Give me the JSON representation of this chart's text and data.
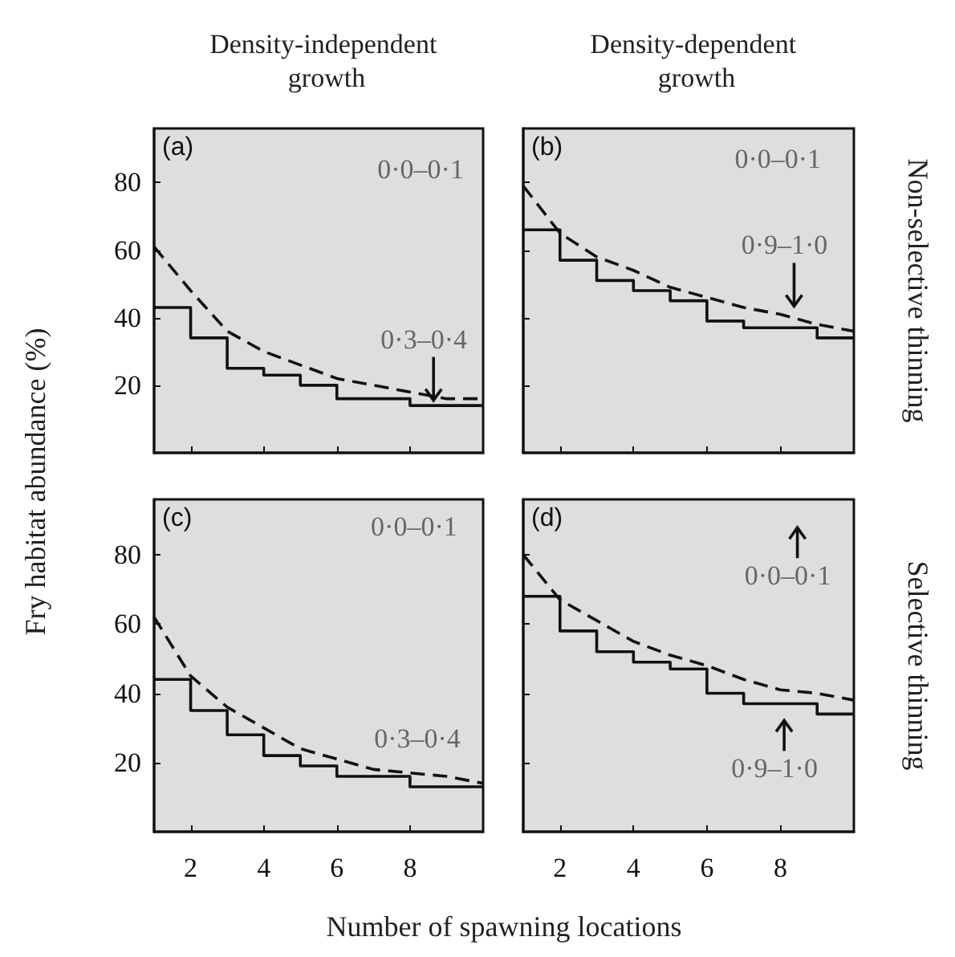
{
  "chart_data": [
    {
      "type": "step",
      "title": "Density-independent growth",
      "ylabel": "Fry habitat abundance (%)",
      "x": [
        1,
        2,
        3,
        4,
        5,
        6,
        7,
        8,
        9,
        10
      ],
      "xlim": [
        1,
        10
      ],
      "ylim": [
        0,
        96
      ],
      "xticks": [
        2,
        4,
        6,
        8
      ],
      "yticks": [
        20,
        40,
        60,
        80
      ],
      "tick_labels": "y",
      "series": [
        {
          "color": "#111111",
          "line_style": "solid",
          "values": [
            43,
            34,
            25,
            23,
            20,
            16,
            16,
            14,
            14,
            14
          ]
        },
        {
          "type": "line",
          "color": "#111111",
          "line_style": "dashed",
          "values": [
            61,
            48,
            36,
            30,
            26,
            22,
            20,
            18,
            16,
            16
          ]
        }
      ],
      "annotations": [
        "(a)",
        "0·0–0·1",
        "0·3–0·4"
      ]
    },
    {
      "type": "step",
      "title": "Density-dependent growth",
      "y2label": "Non-selective thinning",
      "x": [
        1,
        2,
        3,
        4,
        5,
        6,
        7,
        8,
        9,
        10
      ],
      "xlim": [
        1,
        10
      ],
      "ylim": [
        0,
        96
      ],
      "xticks": [
        2,
        4,
        6,
        8
      ],
      "yticks": [
        20,
        40,
        60,
        80
      ],
      "tick_labels": false,
      "series": [
        {
          "color": "#111111",
          "line_style": "solid",
          "values": [
            66,
            57,
            51,
            48,
            45,
            39,
            37,
            37,
            34,
            34
          ]
        },
        {
          "type": "line",
          "color": "#111111",
          "line_style": "dashed",
          "values": [
            79,
            65,
            58,
            54,
            49,
            46,
            43,
            41,
            38,
            36
          ]
        }
      ],
      "annotations": [
        "(b)",
        "0·0–0·1",
        "0·9–1·0"
      ]
    },
    {
      "type": "step",
      "xlabel": "Number of spawning locations",
      "x": [
        1,
        2,
        3,
        4,
        5,
        6,
        7,
        8,
        9,
        10
      ],
      "xlim": [
        1,
        10
      ],
      "ylim": [
        0,
        96
      ],
      "xticks": [
        2,
        4,
        6,
        8
      ],
      "yticks": [
        20,
        40,
        60,
        80
      ],
      "series": [
        {
          "color": "#111111",
          "line_style": "solid",
          "values": [
            44,
            35,
            28,
            22,
            19,
            16,
            16,
            13,
            13,
            13
          ]
        },
        {
          "type": "line",
          "color": "#111111",
          "line_style": "dashed",
          "values": [
            62,
            45,
            36,
            30,
            24,
            21,
            18,
            17,
            16,
            14
          ]
        }
      ],
      "annotations": [
        "(c)",
        "0·0–0·1",
        "0·3–0·4"
      ]
    },
    {
      "type": "step",
      "y2label": "Selective thinning",
      "x": [
        1,
        2,
        3,
        4,
        5,
        6,
        7,
        8,
        9,
        10
      ],
      "xlim": [
        1,
        10
      ],
      "ylim": [
        0,
        96
      ],
      "xticks": [
        2,
        4,
        6,
        8
      ],
      "yticks": [
        20,
        40,
        60,
        80
      ],
      "tick_labels": "x",
      "series": [
        {
          "color": "#111111",
          "line_style": "solid",
          "values": [
            68,
            58,
            52,
            49,
            47,
            40,
            37,
            37,
            34,
            34
          ]
        },
        {
          "type": "line",
          "color": "#111111",
          "line_style": "dashed",
          "values": [
            80,
            67,
            61,
            55,
            51,
            48,
            44,
            41,
            40,
            38
          ]
        }
      ],
      "annotations": [
        "(d)",
        "0·0–0·1",
        "0·9–1·0"
      ]
    }
  ]
}
